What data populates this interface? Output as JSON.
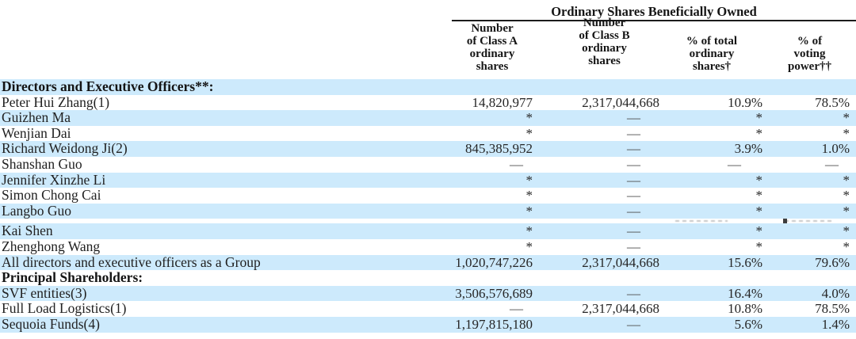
{
  "colors": {
    "stripe": "#cdeafc",
    "rule": "#1c1c1c",
    "text": "#212121"
  },
  "table": {
    "group_header": "Ordinary Shares Beneficially Owned",
    "columns": [
      {
        "id": "class-a-shares",
        "lines": [
          "Number",
          "of Class A",
          "ordinary",
          "shares"
        ]
      },
      {
        "id": "class-b-shares",
        "lines": [
          "Number",
          "of Class B",
          "ordinary",
          "shares"
        ]
      },
      {
        "id": "pct-total-shares",
        "lines": [
          "% of total",
          "ordinary",
          "shares†"
        ]
      },
      {
        "id": "pct-voting-power",
        "lines": [
          "% of",
          "voting",
          "power††"
        ]
      }
    ],
    "rows": [
      {
        "label": "Directors and Executive Officers**:",
        "bold": true,
        "shaded": true,
        "values": [
          "",
          "",
          "",
          ""
        ]
      },
      {
        "label": "Peter Hui Zhang(1)",
        "bold": false,
        "shaded": false,
        "values": [
          "14,820,977",
          "2,317,044,668",
          "10.9%",
          "78.5%"
        ]
      },
      {
        "label": "Guizhen Ma",
        "bold": false,
        "shaded": true,
        "values": [
          "*",
          "—",
          "*",
          "*"
        ]
      },
      {
        "label": "Wenjian Dai",
        "bold": false,
        "shaded": false,
        "values": [
          "*",
          "—",
          "*",
          "*"
        ]
      },
      {
        "label": "Richard Weidong Ji(2)",
        "bold": false,
        "shaded": true,
        "values": [
          "845,385,952",
          "—",
          "3.9%",
          "1.0%"
        ]
      },
      {
        "label": "Shanshan Guo",
        "bold": false,
        "shaded": false,
        "values": [
          "—",
          "—",
          "—",
          "—"
        ]
      },
      {
        "label": "Jennifer Xinzhe Li",
        "bold": false,
        "shaded": true,
        "values": [
          "*",
          "—",
          "*",
          "*"
        ]
      },
      {
        "label": "Simon Chong Cai",
        "bold": false,
        "shaded": false,
        "values": [
          "*",
          "—",
          "*",
          "*"
        ]
      },
      {
        "label": "Langbo Guo",
        "bold": false,
        "shaded": true,
        "values": [
          "*",
          "—",
          "*",
          "*"
        ],
        "artifact_after": true
      },
      {
        "label": "Kai Shen",
        "bold": false,
        "shaded": true,
        "values": [
          "*",
          "—",
          "*",
          "*"
        ]
      },
      {
        "label": "Zhenghong Wang",
        "bold": false,
        "shaded": false,
        "values": [
          "*",
          "—",
          "*",
          "*"
        ]
      },
      {
        "label": "All directors and executive officers as a Group",
        "bold": false,
        "shaded": true,
        "values": [
          "1,020,747,226",
          "2,317,044,668",
          "15.6%",
          "79.6%"
        ]
      },
      {
        "label": "Principal Shareholders:",
        "bold": true,
        "shaded": false,
        "values": [
          "",
          "",
          "",
          ""
        ]
      },
      {
        "label": "SVF entities(3)",
        "bold": false,
        "shaded": true,
        "values": [
          "3,506,576,689",
          "—",
          "16.4%",
          "4.0%"
        ]
      },
      {
        "label": "Full Load Logistics(1)",
        "bold": false,
        "shaded": false,
        "values": [
          "—",
          "2,317,044,668",
          "10.8%",
          "78.5%"
        ]
      },
      {
        "label": "Sequoia Funds(4)",
        "bold": false,
        "shaded": true,
        "values": [
          "1,197,815,180",
          "—",
          "5.6%",
          "1.4%"
        ]
      }
    ]
  }
}
